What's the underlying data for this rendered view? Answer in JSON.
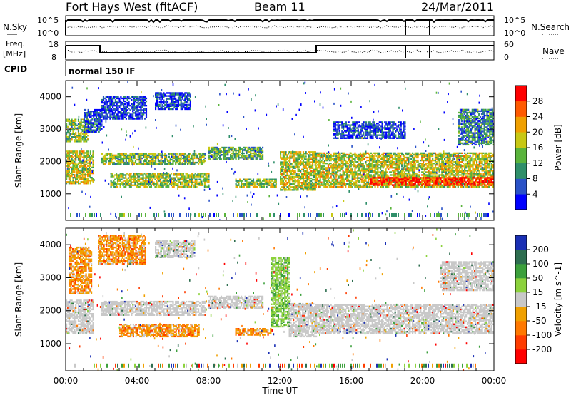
{
  "header": {
    "station": "Fort Hays West (fitACF)",
    "beam": "Beam 11",
    "date": "24/Mar/2011"
  },
  "panels": {
    "nsky_label": "N.Sky",
    "nsky_ticks": [
      "10^5",
      "10^0"
    ],
    "nsearch_label": "N.Search",
    "nsearch_ticks": [
      "10^5",
      "10^0"
    ],
    "freq_label": [
      "Freq.",
      "[MHz]"
    ],
    "freq_ticks": [
      "18",
      "8"
    ],
    "nave_label": "Nave",
    "nave_ticks": [
      "60",
      "0"
    ],
    "cpid_label": "CPID",
    "cpid_text": "normal 150 IF"
  },
  "chart_data": [
    {
      "type": "heatmap",
      "title": "Power",
      "ylabel": "Slant Range [km]",
      "xlabel": "Time UT",
      "ylim": [
        180,
        4500
      ],
      "yticks": [
        "1000",
        "2000",
        "3000",
        "4000"
      ],
      "xticks": [
        "00:00",
        "04:00",
        "08:00",
        "12:00",
        "16:00",
        "20:00",
        "00:00"
      ],
      "colorbar": {
        "label": "Power [dB]",
        "ticks": [
          "4",
          "8",
          "12",
          "16",
          "20",
          "24",
          "28"
        ],
        "colors": [
          "#0000ff",
          "#2a52c8",
          "#2f8f6a",
          "#5ab43c",
          "#c8c814",
          "#f0a000",
          "#ff5a00",
          "#ff0000"
        ]
      },
      "echo_regions": [
        {
          "t0": 0.0,
          "t1": 1.5,
          "r0": 1300,
          "r1": 2300,
          "level": 0.55
        },
        {
          "t0": 0.0,
          "t1": 1.2,
          "r0": 2600,
          "r1": 3300,
          "level": 0.45
        },
        {
          "t0": 1.0,
          "t1": 2.0,
          "r0": 2900,
          "r1": 3600,
          "level": 0.2
        },
        {
          "t0": 2.0,
          "t1": 7.8,
          "r0": 1900,
          "r1": 2250,
          "level": 0.45
        },
        {
          "t0": 2.5,
          "t1": 8.0,
          "r0": 1200,
          "r1": 1650,
          "level": 0.5
        },
        {
          "t0": 2.0,
          "t1": 4.5,
          "r0": 3300,
          "r1": 4000,
          "level": 0.15
        },
        {
          "t0": 5.0,
          "t1": 7.0,
          "r0": 3600,
          "r1": 4100,
          "level": 0.15
        },
        {
          "t0": 8.0,
          "t1": 11.0,
          "r0": 2050,
          "r1": 2450,
          "level": 0.4
        },
        {
          "t0": 9.5,
          "t1": 11.8,
          "r0": 1200,
          "r1": 1450,
          "level": 0.5
        },
        {
          "t0": 12.0,
          "t1": 14.0,
          "r0": 1100,
          "r1": 2300,
          "level": 0.55
        },
        {
          "t0": 14.0,
          "t1": 24.0,
          "r0": 1200,
          "r1": 2250,
          "level": 0.55
        },
        {
          "t0": 17.0,
          "t1": 24.0,
          "r0": 1250,
          "r1": 1500,
          "level": 0.9
        },
        {
          "t0": 15.0,
          "t1": 19.0,
          "r0": 2700,
          "r1": 3200,
          "level": 0.15
        },
        {
          "t0": 22.0,
          "t1": 24.0,
          "r0": 2500,
          "r1": 3600,
          "level": 0.3
        }
      ]
    },
    {
      "type": "heatmap",
      "title": "Velocity",
      "ylabel": "Slant Range [km]",
      "xlabel": "Time UT",
      "ylim": [
        180,
        4500
      ],
      "yticks": [
        "1000",
        "2000",
        "3000",
        "4000"
      ],
      "xticks": [
        "00:00",
        "04:00",
        "08:00",
        "12:00",
        "16:00",
        "20:00",
        "00:00"
      ],
      "colorbar": {
        "label": "Velocity [m s^-1]",
        "ticks": [
          "200",
          "100",
          "50",
          "15",
          "-15",
          "-50",
          "-100",
          "-200"
        ],
        "colors": [
          "#1a2fb4",
          "#2e6e50",
          "#3ca03c",
          "#8cd23c",
          "#c8c8c8",
          "#f0a000",
          "#ff7800",
          "#ff3c00",
          "#ff0000"
        ]
      },
      "echo_regions": [
        {
          "t0": 0.0,
          "t1": 1.5,
          "r0": 1300,
          "r1": 2300,
          "vel": "ground"
        },
        {
          "t0": 0.2,
          "t1": 1.4,
          "r0": 2500,
          "r1": 3900,
          "vel": "neg"
        },
        {
          "t0": 1.8,
          "t1": 4.5,
          "r0": 3400,
          "r1": 4300,
          "vel": "neg"
        },
        {
          "t0": 2.0,
          "t1": 7.8,
          "r0": 1850,
          "r1": 2300,
          "vel": "ground"
        },
        {
          "t0": 3.0,
          "t1": 7.5,
          "r0": 1200,
          "r1": 1600,
          "vel": "neg"
        },
        {
          "t0": 5.0,
          "t1": 7.2,
          "r0": 3600,
          "r1": 4100,
          "vel": "ground"
        },
        {
          "t0": 8.0,
          "t1": 11.0,
          "r0": 2050,
          "r1": 2450,
          "vel": "ground"
        },
        {
          "t0": 9.5,
          "t1": 11.5,
          "r0": 1250,
          "r1": 1450,
          "vel": "neg"
        },
        {
          "t0": 11.5,
          "t1": 12.5,
          "r0": 1500,
          "r1": 3600,
          "vel": "pos"
        },
        {
          "t0": 12.5,
          "t1": 14.0,
          "r0": 1200,
          "r1": 2200,
          "vel": "ground"
        },
        {
          "t0": 14.0,
          "t1": 24.0,
          "r0": 1300,
          "r1": 2200,
          "vel": "ground"
        },
        {
          "t0": 21.0,
          "t1": 24.0,
          "r0": 2600,
          "r1": 3500,
          "vel": "ground"
        }
      ]
    }
  ]
}
